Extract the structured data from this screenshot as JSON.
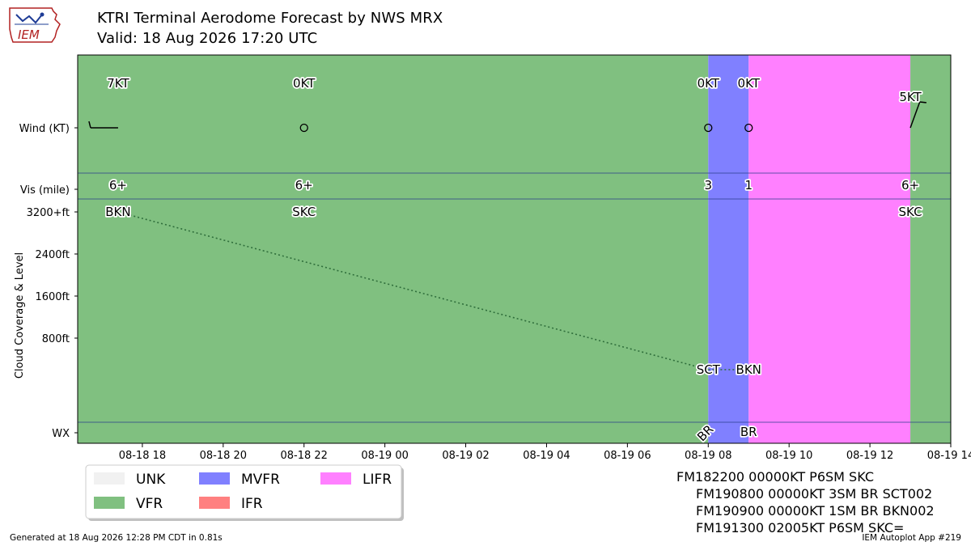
{
  "header": {
    "logo_text": "IEM",
    "title": "KTRI Terminal Aerodome Forecast by NWS MRX",
    "subtitle": "Valid: 18 Aug 2026 17:20 UTC"
  },
  "chart_data": {
    "type": "timeline",
    "x_axis": {
      "range_hours": [
        -1.6,
        20.0
      ],
      "ticks": [
        {
          "label": "08-18 18",
          "hour": 0
        },
        {
          "label": "08-18 20",
          "hour": 2
        },
        {
          "label": "08-18 22",
          "hour": 4
        },
        {
          "label": "08-19 00",
          "hour": 6
        },
        {
          "label": "08-19 02",
          "hour": 8
        },
        {
          "label": "08-19 04",
          "hour": 10
        },
        {
          "label": "08-19 06",
          "hour": 12
        },
        {
          "label": "08-19 08",
          "hour": 14
        },
        {
          "label": "08-19 10",
          "hour": 16
        },
        {
          "label": "08-19 12",
          "hour": 18
        },
        {
          "label": "08-19 14",
          "hour": 20
        }
      ]
    },
    "ylabel": "Cloud Coverage & Level",
    "rows": {
      "wind": "Wind (KT)",
      "vis": "Vis (mile)",
      "wx": "WX"
    },
    "cloud_axis": {
      "range_ft": [
        -800,
        3200
      ],
      "ticks": [
        {
          "label": "3200+ft",
          "value": 3200
        },
        {
          "label": "2400ft",
          "value": 2400
        },
        {
          "label": "1600ft",
          "value": 1600
        },
        {
          "label": "800ft",
          "value": 800
        }
      ]
    },
    "category_bands": [
      {
        "start": -1.6,
        "end": 14.0,
        "category": "VFR",
        "color": "#80c080"
      },
      {
        "start": 14.0,
        "end": 15.0,
        "category": "MVFR",
        "color": "#8080ff"
      },
      {
        "start": 15.0,
        "end": 19.0,
        "category": "LIFR",
        "color": "#ff80ff"
      },
      {
        "start": 19.0,
        "end": 20.0,
        "category": "VFR",
        "color": "#80c080"
      }
    ],
    "wind": [
      {
        "hour": -0.6,
        "label": "7KT",
        "speed_kt": 7,
        "dir_deg": 270
      },
      {
        "hour": 4.0,
        "label": "0KT",
        "speed_kt": 0,
        "dir_deg": 0
      },
      {
        "hour": 14.0,
        "label": "0KT",
        "speed_kt": 0,
        "dir_deg": 0
      },
      {
        "hour": 15.0,
        "label": "0KT",
        "speed_kt": 0,
        "dir_deg": 0
      },
      {
        "hour": 19.0,
        "label": "5KT",
        "speed_kt": 5,
        "dir_deg": 20
      }
    ],
    "visibility": [
      {
        "hour": -0.6,
        "label": "6+"
      },
      {
        "hour": 4.0,
        "label": "6+"
      },
      {
        "hour": 14.0,
        "label": "3"
      },
      {
        "hour": 15.0,
        "label": "1"
      },
      {
        "hour": 19.0,
        "label": "6+"
      }
    ],
    "clouds": [
      {
        "hour": -0.6,
        "label": "BKN",
        "level_ft": 3200
      },
      {
        "hour": 4.0,
        "label": "SKC",
        "level_ft": 3200
      },
      {
        "hour": 14.0,
        "label": "SCT",
        "level_ft": 200
      },
      {
        "hour": 15.0,
        "label": "BKN",
        "level_ft": 200
      },
      {
        "hour": 19.0,
        "label": "SKC",
        "level_ft": 3200
      }
    ],
    "cloud_line": [
      {
        "hour": -0.6,
        "level_ft": 3200
      },
      {
        "hour": 14.0,
        "level_ft": 200
      },
      {
        "hour": 15.0,
        "level_ft": 200
      }
    ],
    "weather": [
      {
        "hour": 14.0,
        "label": "BR",
        "rotated": true
      },
      {
        "hour": 15.0,
        "label": "BR",
        "rotated": false
      }
    ],
    "legend": {
      "placement": "bottom-left",
      "items": [
        {
          "label": "UNK",
          "color": "#f1f1f1"
        },
        {
          "label": "VFR",
          "color": "#80c080"
        },
        {
          "label": "MVFR",
          "color": "#8080ff"
        },
        {
          "label": "IFR",
          "color": "#ff8080"
        },
        {
          "label": "LIFR",
          "color": "#ff80ff"
        }
      ]
    }
  },
  "taf_text": [
    "FM182200 00000KT P6SM SKC",
    "FM190800 00000KT 3SM BR SCT002",
    "FM190900 00000KT 1SM BR BKN002",
    "FM191300 02005KT P6SM SKC="
  ],
  "footer": {
    "generated": "Generated at 18 Aug 2026 12:28 PM CDT in 0.81s",
    "app": "IEM Autoplot App #219"
  }
}
